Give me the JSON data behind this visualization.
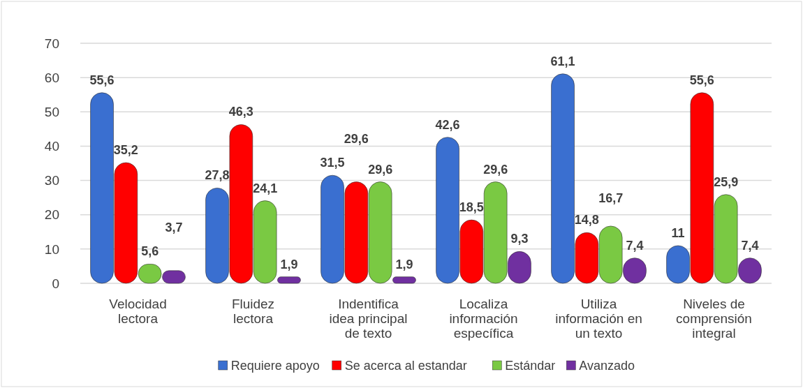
{
  "chart_data": {
    "type": "bar",
    "categories": [
      "Velocidad lectora",
      "Fluidez lectora",
      "Indentifica idea principal de texto",
      "Localiza información específica",
      "Utiliza información en un texto",
      "Niveles de comprensión integral"
    ],
    "series": [
      {
        "name": "Requiere apoyo",
        "color": "#3a6fd0",
        "values": [
          55.6,
          27.8,
          31.5,
          42.6,
          61.1,
          11
        ],
        "value_labels": [
          "55,6",
          "27,8",
          "31,5",
          "42,6",
          "61,1",
          "11"
        ]
      },
      {
        "name": "Se acerca al estandar",
        "color": "#ff0000",
        "values": [
          35.2,
          46.3,
          29.6,
          18.5,
          14.8,
          55.6
        ],
        "value_labels": [
          "35,2",
          "46,3",
          "29,6",
          "18,5",
          "14,8",
          "55,6"
        ]
      },
      {
        "name": "Estándar",
        "color": "#7ac943",
        "values": [
          5.6,
          24.1,
          29.6,
          29.6,
          16.7,
          25.9
        ],
        "value_labels": [
          "5,6",
          "24,1",
          "29,6",
          "29,6",
          "16,7",
          "25,9"
        ]
      },
      {
        "name": "Avanzado",
        "color": "#7030a0",
        "values": [
          3.7,
          1.9,
          1.9,
          9.3,
          7.4,
          7.4
        ],
        "value_labels": [
          "3,7",
          "1,9",
          "1,9",
          "9,3",
          "7,4",
          "7,4"
        ]
      }
    ],
    "ylim": [
      0,
      70
    ],
    "yticks": [
      0,
      10,
      20,
      30,
      40,
      50,
      60,
      70
    ],
    "grid": "y",
    "legend": "bottom"
  }
}
